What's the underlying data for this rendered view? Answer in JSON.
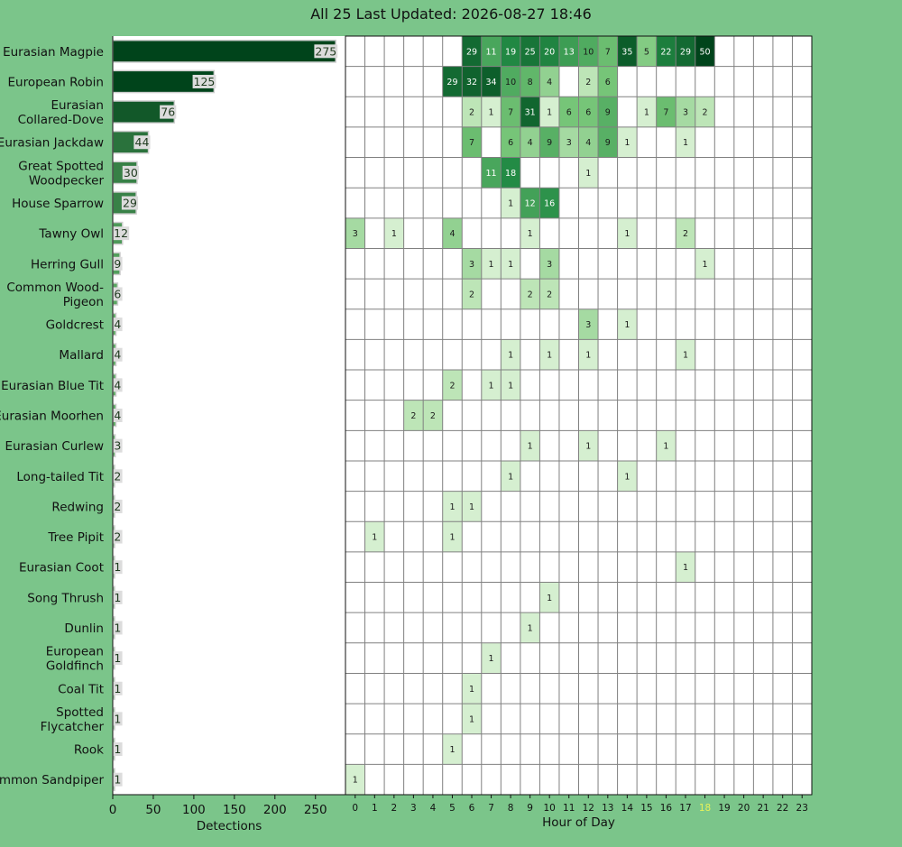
{
  "title": "All 25 Last Updated: 2026-08-27 18:46",
  "colors": {
    "background": "#7bc58a",
    "current_hour": "#e6f25a"
  },
  "chart_data": [
    {
      "type": "bar",
      "orientation": "horizontal",
      "xlabel": "Detections",
      "xlim": [
        0,
        287
      ],
      "x_ticks": [
        0,
        50,
        100,
        150,
        200,
        250
      ],
      "categories": [
        "Eurasian Magpie",
        "European Robin",
        "Eurasian Collared-Dove",
        "Eurasian Jackdaw",
        "Great Spotted Woodpecker",
        "House Sparrow",
        "Tawny Owl",
        "Herring Gull",
        "Common Wood-Pigeon",
        "Goldcrest",
        "Mallard",
        "Eurasian Blue Tit",
        "Eurasian Moorhen",
        "Eurasian Curlew",
        "Long-tailed Tit",
        "Redwing",
        "Tree Pipit",
        "Eurasian Coot",
        "Song Thrush",
        "Dunlin",
        "European Goldfinch",
        "Coal Tit",
        "Spotted Flycatcher",
        "Rook",
        "Common Sandpiper"
      ],
      "category_labels": [
        [
          "Eurasian Magpie"
        ],
        [
          "European Robin"
        ],
        [
          "Eurasian",
          "Collared-Dove"
        ],
        [
          "Eurasian Jackdaw"
        ],
        [
          "Great Spotted",
          "Woodpecker"
        ],
        [
          "House Sparrow"
        ],
        [
          "Tawny Owl"
        ],
        [
          "Herring Gull"
        ],
        [
          "Common Wood-",
          "Pigeon"
        ],
        [
          "Goldcrest"
        ],
        [
          "Mallard"
        ],
        [
          "Eurasian Blue Tit"
        ],
        [
          "Eurasian Moorhen"
        ],
        [
          "Eurasian Curlew"
        ],
        [
          "Long-tailed Tit"
        ],
        [
          "Redwing"
        ],
        [
          "Tree Pipit"
        ],
        [
          "Eurasian Coot"
        ],
        [
          "Song Thrush"
        ],
        [
          "Dunlin"
        ],
        [
          "European",
          "Goldfinch"
        ],
        [
          "Coal Tit"
        ],
        [
          "Spotted",
          "Flycatcher"
        ],
        [
          "Rook"
        ],
        [
          "Common Sandpiper"
        ]
      ],
      "values": [
        275,
        125,
        76,
        44,
        30,
        29,
        12,
        9,
        6,
        4,
        4,
        4,
        4,
        3,
        2,
        2,
        2,
        1,
        1,
        1,
        1,
        1,
        1,
        1,
        1
      ]
    },
    {
      "type": "heatmap",
      "xlabel": "Hour of Day",
      "hours": [
        0,
        1,
        2,
        3,
        4,
        5,
        6,
        7,
        8,
        9,
        10,
        11,
        12,
        13,
        14,
        15,
        16,
        17,
        18,
        19,
        20,
        21,
        22,
        23
      ],
      "highlight_hour": 18,
      "rows": [
        {
          "0": null,
          "6": 29,
          "7": 11,
          "8": 19,
          "9": 25,
          "10": 20,
          "11": 13,
          "12": 10,
          "13": 7,
          "14": 35,
          "15": 5,
          "16": 22,
          "17": 29,
          "18": 50
        },
        {
          "5": 29,
          "6": 32,
          "7": 34,
          "8": 10,
          "9": 8,
          "10": 4,
          "12": 2,
          "13": 6
        },
        {
          "6": 2,
          "7": 1,
          "8": 7,
          "9": 31,
          "10": 1,
          "11": 6,
          "12": 6,
          "13": 9,
          "15": 1,
          "16": 7,
          "17": 3,
          "18": 2
        },
        {
          "6": 7,
          "8": 6,
          "9": 4,
          "10": 9,
          "11": 3,
          "12": 4,
          "13": 9,
          "14": 1,
          "17": 1
        },
        {
          "7": 11,
          "8": 18,
          "12": 1
        },
        {
          "8": 1,
          "9": 12,
          "10": 16
        },
        {
          "0": 3,
          "2": 1,
          "5": 4,
          "9": 1,
          "14": 1,
          "17": 2
        },
        {
          "6": 3,
          "7": 1,
          "8": 1,
          "10": 3,
          "18": 1
        },
        {
          "6": 2,
          "9": 2,
          "10": 2
        },
        {
          "12": 3,
          "14": 1
        },
        {
          "8": 1,
          "10": 1,
          "12": 1,
          "17": 1
        },
        {
          "5": 2,
          "7": 1,
          "8": 1
        },
        {
          "3": 2,
          "4": 2
        },
        {
          "9": 1,
          "12": 1,
          "16": 1
        },
        {
          "8": 1,
          "14": 1
        },
        {
          "5": 1,
          "6": 1
        },
        {
          "1": 1,
          "5": 1
        },
        {
          "17": 1
        },
        {
          "10": 1
        },
        {
          "9": 1
        },
        {
          "7": 1
        },
        {
          "6": 1
        },
        {
          "6": 1
        },
        {
          "5": 1
        },
        {
          "0": 1
        }
      ]
    }
  ]
}
